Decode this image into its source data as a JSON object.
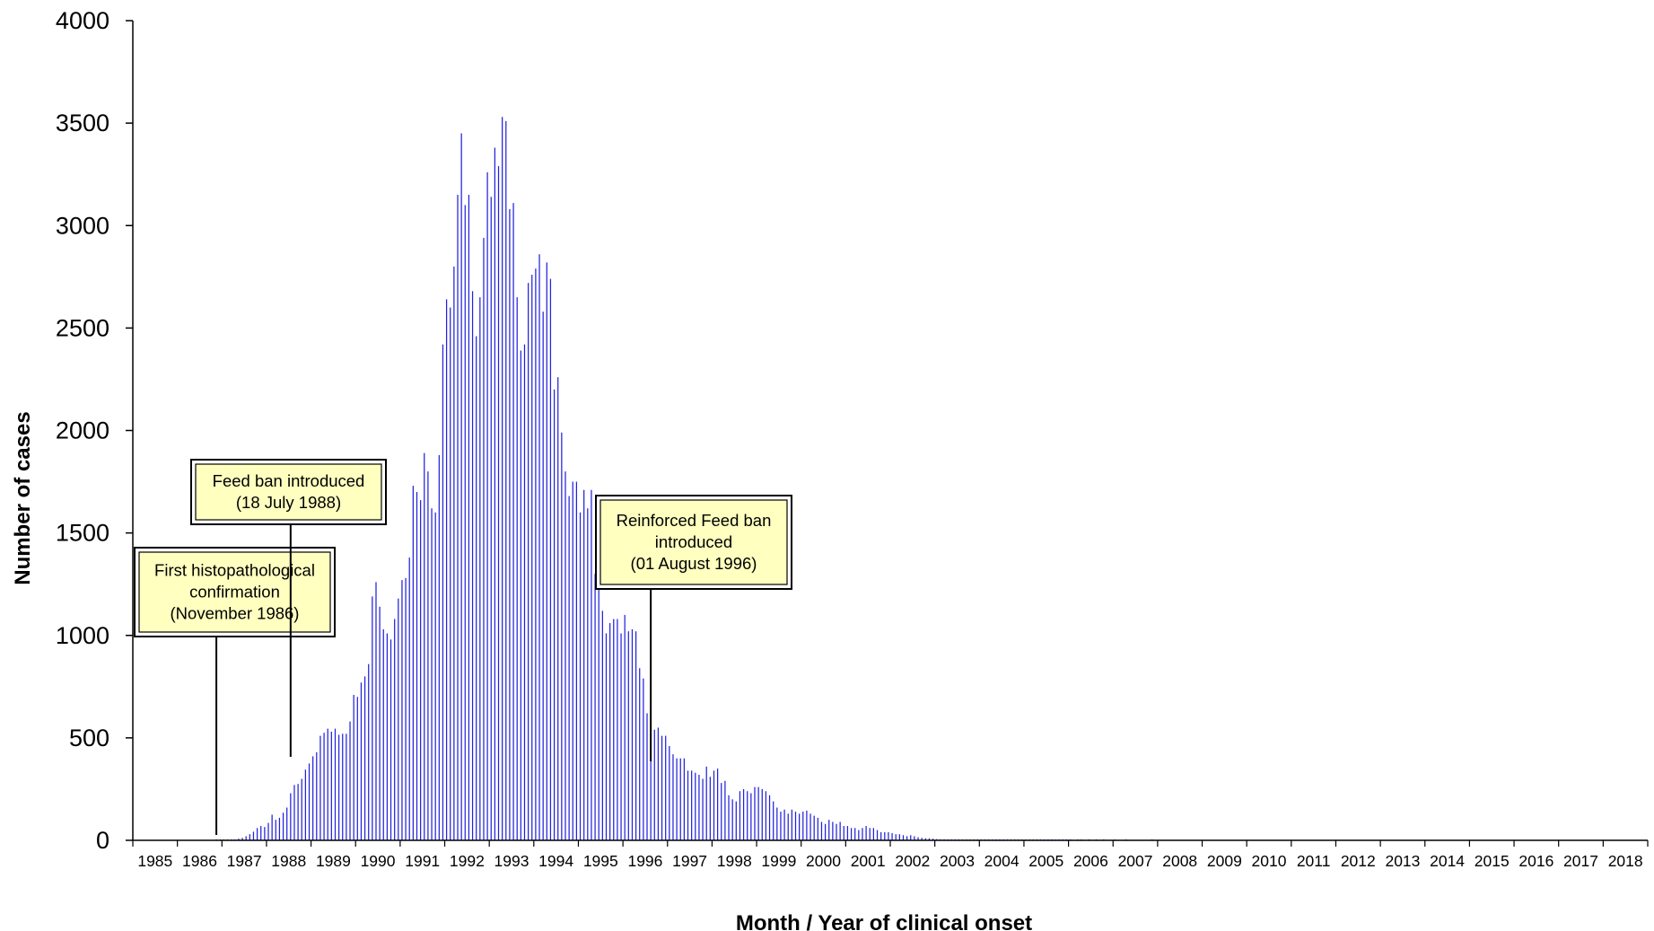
{
  "chart_data": {
    "type": "bar",
    "title": "",
    "xlabel": "Month / Year of clinical  onset",
    "ylabel": "Number of cases",
    "ylim": [
      0,
      4000
    ],
    "yticks": [
      0,
      500,
      1000,
      1500,
      2000,
      2500,
      3000,
      3500,
      4000
    ],
    "xlim": [
      "1985-01",
      "2018-12"
    ],
    "x_tick_labels": [
      "1985",
      "1986",
      "1987",
      "1988",
      "1989",
      "1990",
      "1991",
      "1992",
      "1993",
      "1994",
      "1995",
      "1996",
      "1997",
      "1998",
      "1999",
      "2000",
      "2001",
      "2002",
      "2003",
      "2004",
      "2005",
      "2006",
      "2007",
      "2008",
      "2009",
      "2010",
      "2011",
      "2012",
      "2013",
      "2014",
      "2015",
      "2016",
      "2017",
      "2018"
    ],
    "grid": false,
    "bar_color": "#2222dd",
    "annotation_color": "#ffffc0",
    "series": [
      {
        "start_month": "1985-01",
        "values": [
          0,
          0,
          0,
          0,
          0,
          0,
          0,
          0,
          0,
          0,
          0,
          0,
          0,
          0,
          0,
          0,
          0,
          0,
          0,
          0,
          0,
          0,
          1,
          1,
          1,
          1,
          2,
          4,
          8,
          12,
          20,
          30,
          42,
          60,
          70,
          65,
          85,
          125,
          100,
          110,
          135,
          160,
          230,
          270,
          275,
          300,
          345,
          375,
          410,
          430,
          510,
          525,
          545,
          530,
          545,
          515,
          520,
          520,
          580,
          710,
          700,
          770,
          800,
          860,
          1190,
          1260,
          1140,
          1030,
          1010,
          980,
          1080,
          1180,
          1270,
          1280,
          1380,
          1730,
          1700,
          1660,
          1890,
          1800,
          1620,
          1600,
          1880,
          2420,
          2640,
          2600,
          2800,
          3150,
          3450,
          3100,
          3150,
          2680,
          2460,
          2650,
          2940,
          3260,
          3140,
          3380,
          3290,
          3530,
          3510,
          3080,
          3110,
          2650,
          2390,
          2420,
          2720,
          2760,
          2790,
          2860,
          2580,
          2820,
          2740,
          2200,
          2260,
          1990,
          1800,
          1680,
          1750,
          1750,
          1600,
          1710,
          1620,
          1710,
          1300,
          1350,
          1120,
          1010,
          1060,
          1080,
          1080,
          1010,
          1100,
          1020,
          1030,
          1020,
          840,
          790,
          620,
          540,
          540,
          550,
          510,
          510,
          460,
          420,
          400,
          400,
          400,
          340,
          340,
          330,
          320,
          300,
          360,
          310,
          340,
          350,
          280,
          290,
          220,
          200,
          190,
          240,
          250,
          240,
          230,
          260,
          260,
          250,
          240,
          220,
          190,
          160,
          140,
          150,
          130,
          150,
          140,
          130,
          140,
          145,
          130,
          120,
          110,
          90,
          80,
          100,
          90,
          80,
          90,
          70,
          70,
          60,
          60,
          50,
          60,
          70,
          60,
          60,
          50,
          40,
          40,
          40,
          35,
          30,
          30,
          25,
          20,
          25,
          20,
          15,
          12,
          10,
          10,
          8,
          6,
          5,
          5,
          4,
          4,
          3,
          3,
          2,
          2,
          2,
          2,
          2,
          2,
          1,
          1,
          1,
          1,
          1,
          1,
          1,
          1,
          1,
          1,
          1,
          1,
          1,
          1,
          1,
          1,
          1,
          1,
          1,
          1,
          1,
          1,
          1,
          1,
          0,
          1,
          1,
          0,
          1,
          0,
          1,
          0,
          1,
          0,
          0,
          1,
          0,
          0,
          1,
          0,
          0,
          0,
          0,
          0,
          0,
          1,
          0,
          0,
          0,
          0,
          0,
          0,
          0,
          0,
          0,
          0,
          0,
          0,
          0,
          0,
          0,
          0,
          0,
          0,
          0,
          0,
          0,
          0,
          0,
          0,
          0,
          0,
          0,
          0,
          0,
          0,
          0,
          0,
          0,
          0,
          0,
          0,
          0,
          0,
          0,
          0,
          0,
          0,
          0,
          0,
          0,
          0,
          0,
          0,
          0,
          0,
          0,
          0,
          0,
          0,
          0,
          0,
          0,
          0,
          0,
          0,
          0,
          0,
          0,
          0,
          0,
          0,
          0,
          0,
          0,
          0,
          0,
          0,
          0,
          0,
          0,
          0,
          0,
          0,
          0,
          0,
          0,
          0,
          0,
          0,
          0,
          0,
          0,
          0,
          0,
          0,
          0,
          0,
          0,
          0,
          0,
          0,
          0,
          0,
          0,
          0,
          0,
          0,
          0,
          0,
          0,
          0,
          0,
          0,
          0,
          0,
          0,
          0,
          0,
          0,
          0,
          0,
          0,
          0,
          0,
          0,
          0,
          0
        ]
      }
    ],
    "annotations": [
      {
        "id": "first-confirmation",
        "lines": [
          "First histopathological",
          "confirmation",
          "(November  1986)"
        ],
        "date": "1986-11"
      },
      {
        "id": "feed-ban",
        "lines": [
          "Feed ban introduced",
          "(18 July 1988)"
        ],
        "date": "1988-07"
      },
      {
        "id": "reinforced-feed-ban",
        "lines": [
          "Reinforced Feed ban",
          "introduced",
          "(01 August 1996)"
        ],
        "date": "1996-08"
      }
    ]
  }
}
